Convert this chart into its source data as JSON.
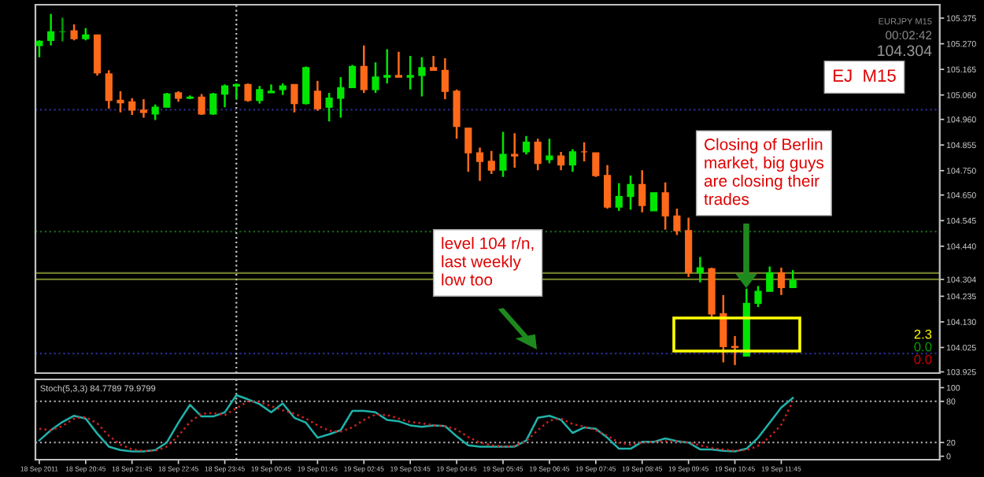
{
  "chart_data": [
    {
      "type": "candlestick",
      "x": [
        "2011-09-18T19:45",
        "2011-09-18T20:00",
        "2011-09-18T20:15",
        "2011-09-18T20:30",
        "2011-09-18T20:45",
        "2011-09-18T21:00",
        "2011-09-18T21:15",
        "2011-09-18T21:30",
        "2011-09-18T21:45",
        "2011-09-18T22:00",
        "2011-09-18T22:15",
        "2011-09-18T22:30",
        "2011-09-18T22:45",
        "2011-09-18T23:00",
        "2011-09-18T23:15",
        "2011-09-18T23:30",
        "2011-09-18T23:45",
        "2011-09-19T00:00",
        "2011-09-19T00:15",
        "2011-09-19T00:30",
        "2011-09-19T00:45",
        "2011-09-19T01:00",
        "2011-09-19T01:15",
        "2011-09-19T01:30",
        "2011-09-19T01:45",
        "2011-09-19T02:00",
        "2011-09-19T02:15",
        "2011-09-19T02:30",
        "2011-09-19T02:45",
        "2011-09-19T03:00",
        "2011-09-19T03:15",
        "2011-09-19T03:30",
        "2011-09-19T03:45",
        "2011-09-19T04:00",
        "2011-09-19T04:15",
        "2011-09-19T04:30",
        "2011-09-19T04:45",
        "2011-09-19T05:00",
        "2011-09-19T05:15",
        "2011-09-19T05:30",
        "2011-09-19T05:45",
        "2011-09-19T06:00",
        "2011-09-19T06:15",
        "2011-09-19T06:30",
        "2011-09-19T06:45",
        "2011-09-19T07:00",
        "2011-09-19T07:15",
        "2011-09-19T07:30",
        "2011-09-19T07:45",
        "2011-09-19T08:00",
        "2011-09-19T08:15",
        "2011-09-19T08:30",
        "2011-09-19T08:45",
        "2011-09-19T09:00",
        "2011-09-19T09:15",
        "2011-09-19T09:30",
        "2011-09-19T09:45",
        "2011-09-19T10:00",
        "2011-09-19T10:15",
        "2011-09-19T10:30",
        "2011-09-19T10:45",
        "2011-09-19T11:00",
        "2011-09-19T11:15",
        "2011-09-19T11:30",
        "2011-09-19T11:45",
        "2011-09-19T12:00"
      ],
      "ohlc": [
        [
          105.263,
          105.284,
          105.215,
          105.28
        ],
        [
          105.284,
          105.392,
          105.263,
          105.319
        ],
        [
          105.319,
          105.377,
          105.28,
          105.319
        ],
        [
          105.323,
          105.349,
          105.284,
          105.291
        ],
        [
          105.291,
          105.334,
          105.284,
          105.306
        ],
        [
          105.306,
          105.306,
          105.14,
          105.151
        ],
        [
          105.146,
          105.161,
          105.004,
          105.038
        ],
        [
          105.038,
          105.075,
          104.989,
          105.028
        ],
        [
          105.032,
          105.047,
          104.978,
          104.998
        ],
        [
          104.998,
          105.043,
          104.967,
          104.989
        ],
        [
          104.982,
          105.021,
          104.957,
          105.01
        ],
        [
          105.01,
          105.069,
          105.01,
          105.064
        ],
        [
          105.069,
          105.075,
          105.032,
          105.047
        ],
        [
          105.047,
          105.058,
          105.043,
          105.051
        ],
        [
          105.051,
          105.064,
          104.978,
          104.982
        ],
        [
          104.982,
          105.069,
          104.978,
          105.064
        ],
        [
          105.064,
          105.103,
          105.01,
          105.097
        ],
        [
          105.097,
          105.107,
          105.043,
          105.103
        ],
        [
          105.103,
          105.107,
          105.032,
          105.038
        ],
        [
          105.038,
          105.097,
          105.025,
          105.082
        ],
        [
          105.069,
          105.103,
          105.069,
          105.075
        ],
        [
          105.082,
          105.107,
          105.06,
          105.097
        ],
        [
          105.103,
          105.103,
          104.989,
          105.025
        ],
        [
          105.025,
          105.177,
          105.021,
          105.172
        ],
        [
          105.075,
          105.118,
          104.995,
          105.004
        ],
        [
          105.01,
          105.069,
          104.952,
          105.047
        ],
        [
          105.047,
          105.133,
          104.967,
          105.09
        ],
        [
          105.09,
          105.183,
          105.09,
          105.177
        ],
        [
          105.177,
          105.263,
          105.069,
          105.082
        ],
        [
          105.082,
          105.194,
          105.069,
          105.133
        ],
        [
          105.133,
          105.248,
          105.107,
          105.14
        ],
        [
          105.14,
          105.237,
          105.133,
          105.133
        ],
        [
          105.133,
          105.22,
          105.082,
          105.14
        ],
        [
          105.14,
          105.215,
          105.054,
          105.172
        ],
        [
          105.172,
          105.22,
          105.161,
          105.161
        ],
        [
          105.161,
          105.211,
          105.043,
          105.075
        ],
        [
          105.075,
          105.082,
          104.881,
          104.931
        ],
        [
          104.924,
          104.924,
          104.745,
          104.823
        ],
        [
          104.823,
          104.844,
          104.708,
          104.788
        ],
        [
          104.788,
          104.831,
          104.736,
          104.752
        ],
        [
          104.752,
          104.909,
          104.724,
          104.816
        ],
        [
          104.816,
          104.903,
          104.762,
          104.81
        ],
        [
          104.827,
          104.892,
          104.816,
          104.866
        ],
        [
          104.866,
          104.881,
          104.752,
          104.78
        ],
        [
          104.795,
          104.881,
          104.78,
          104.81
        ],
        [
          104.81,
          104.827,
          104.752,
          104.773
        ],
        [
          104.773,
          104.838,
          104.745,
          104.827
        ],
        [
          104.827,
          104.866,
          104.788,
          104.827
        ],
        [
          104.823,
          104.823,
          104.724,
          104.73
        ],
        [
          104.73,
          104.773,
          104.594,
          104.601
        ],
        [
          104.601,
          104.698,
          104.585,
          104.644
        ],
        [
          104.644,
          104.73,
          104.59,
          104.693
        ],
        [
          104.693,
          104.752,
          104.579,
          104.607
        ],
        [
          104.585,
          104.659,
          104.585,
          104.659
        ],
        [
          104.659,
          104.702,
          104.508,
          104.564
        ],
        [
          104.564,
          104.594,
          104.486,
          104.504
        ],
        [
          104.504,
          104.557,
          104.314,
          104.331
        ],
        [
          104.331,
          104.396,
          104.292,
          104.352
        ],
        [
          104.348,
          104.352,
          104.148,
          104.163
        ],
        [
          104.163,
          104.24,
          103.964,
          104.029
        ],
        [
          104.029,
          104.072,
          103.953,
          104.025
        ],
        [
          103.99,
          104.266,
          103.99,
          104.206
        ],
        [
          104.206,
          104.277,
          104.191,
          104.255
        ],
        [
          104.255,
          104.357,
          104.255,
          104.331
        ],
        [
          104.331,
          104.352,
          104.24,
          104.271
        ],
        [
          104.271,
          104.342,
          104.271,
          104.299
        ]
      ],
      "colors": [
        "#00e600",
        "#00e600",
        "#00a000",
        "#ff6a1a",
        "#00e600",
        "#ff6a1a",
        "#ff6a1a",
        "#ff6a1a",
        "#ff6a1a",
        "#ff6a1a",
        "#00e600",
        "#00e600",
        "#ff6a1a",
        "#00e600",
        "#ff6a1a",
        "#00e600",
        "#00e600",
        "#00e600",
        "#ff6a1a",
        "#00e600",
        "#00e600",
        "#00e600",
        "#ff6a1a",
        "#00e600",
        "#ff6a1a",
        "#00e600",
        "#00e600",
        "#00e600",
        "#ff6a1a",
        "#00e600",
        "#00e600",
        "#ff6a1a",
        "#00e600",
        "#00e600",
        "#ff6a1a",
        "#ff6a1a",
        "#ff6a1a",
        "#ff6a1a",
        "#ff6a1a",
        "#ff6a1a",
        "#00e600",
        "#ff6a1a",
        "#00e600",
        "#ff6a1a",
        "#00e600",
        "#ff6a1a",
        "#00e600",
        "#ff6a1a",
        "#ff6a1a",
        "#ff6a1a",
        "#00e600",
        "#00e600",
        "#ff6a1a",
        "#00e600",
        "#ff6a1a",
        "#ff6a1a",
        "#ff6a1a",
        "#00e600",
        "#ff6a1a",
        "#ff6a1a",
        "#ff6a1a",
        "#00e600",
        "#00e600",
        "#00e600",
        "#ff6a1a",
        "#00e600"
      ],
      "xlim": [
        "2011-09-18T19:40",
        "2011-09-19T15:10"
      ],
      "ylim": [
        103.92,
        105.43
      ],
      "yticks": [
        105.375,
        {
          "value": 105.27,
          "label": "105.270"
        },
        105.165,
        {
          "value": 105.06,
          "label": "105.060"
        },
        {
          "value": 104.96,
          "label": "104.960"
        },
        104.855,
        {
          "value": 104.75,
          "label": "104.750"
        },
        {
          "value": 104.65,
          "label": "104.650"
        },
        104.545,
        {
          "value": 104.44,
          "label": "104.440"
        },
        104.304,
        104.235,
        {
          "value": 104.13,
          "label": "104.130"
        },
        104.025,
        103.925
      ],
      "tick_labels": "y",
      "ref_lines": [
        {
          "axis": "y",
          "value": 105.0,
          "color": "#2a2a8a",
          "line_style": "dotted"
        },
        {
          "axis": "y",
          "value": 104.5,
          "color": "#1e6a1e",
          "line_style": "dotted"
        },
        {
          "axis": "y",
          "value": 104.0,
          "color": "#2a2a8a",
          "line_style": "dotted"
        },
        {
          "axis": "y",
          "value": 104.33,
          "color": "#6b7a2a",
          "line_style": "solid"
        },
        {
          "axis": "y",
          "value": 104.304,
          "color": "#6b7a2a",
          "line_style": "solid"
        },
        {
          "axis": "x",
          "value": "2011-09-19T00:00",
          "color": "#c8c8c8",
          "line_style": "dotted"
        }
      ],
      "annotations": [
        "EJ  M15",
        "level 104 r/n,\nlast weekly\nlow too",
        "Closing of Berlin\nmarket, big guys\nare closing their\ntrades",
        "EURJPY M15",
        "00:02:42",
        "104.304",
        "2.3",
        "0.0",
        "0.0"
      ]
    },
    {
      "type": "line",
      "title": "Stoch(5,3,3) 84.7789 79.9799",
      "x": [
        "2011-09-18T19:45",
        "2011-09-18T20:00",
        "2011-09-18T20:15",
        "2011-09-18T20:30",
        "2011-09-18T20:45",
        "2011-09-18T21:00",
        "2011-09-18T21:15",
        "2011-09-18T21:30",
        "2011-09-18T21:45",
        "2011-09-18T22:00",
        "2011-09-18T22:15",
        "2011-09-18T22:30",
        "2011-09-18T22:45",
        "2011-09-18T23:00",
        "2011-09-18T23:15",
        "2011-09-18T23:30",
        "2011-09-18T23:45",
        "2011-09-19T00:00",
        "2011-09-19T00:15",
        "2011-09-19T00:30",
        "2011-09-19T00:45",
        "2011-09-19T01:00",
        "2011-09-19T01:15",
        "2011-09-19T01:30",
        "2011-09-19T01:45",
        "2011-09-19T02:00",
        "2011-09-19T02:15",
        "2011-09-19T02:30",
        "2011-09-19T02:45",
        "2011-09-19T03:00",
        "2011-09-19T03:15",
        "2011-09-19T03:30",
        "2011-09-19T03:45",
        "2011-09-19T04:00",
        "2011-09-19T04:15",
        "2011-09-19T04:30",
        "2011-09-19T04:45",
        "2011-09-19T05:00",
        "2011-09-19T05:15",
        "2011-09-19T05:30",
        "2011-09-19T05:45",
        "2011-09-19T06:00",
        "2011-09-19T06:15",
        "2011-09-19T06:30",
        "2011-09-19T06:45",
        "2011-09-19T07:00",
        "2011-09-19T07:15",
        "2011-09-19T07:30",
        "2011-09-19T07:45",
        "2011-09-19T08:00",
        "2011-09-19T08:15",
        "2011-09-19T08:30",
        "2011-09-19T08:45",
        "2011-09-19T09:00",
        "2011-09-19T09:15",
        "2011-09-19T09:30",
        "2011-09-19T09:45",
        "2011-09-19T10:00",
        "2011-09-19T10:15",
        "2011-09-19T10:30",
        "2011-09-19T10:45",
        "2011-09-19T11:00",
        "2011-09-19T11:15",
        "2011-09-19T11:30",
        "2011-09-19T11:45",
        "2011-09-19T12:00"
      ],
      "series": [
        {
          "color": "#20b2aa",
          "line_style": "solid",
          "values": [
            23,
            38,
            50,
            59,
            55,
            33,
            14,
            9,
            7,
            7,
            9,
            20,
            49,
            75,
            58,
            58,
            64,
            89,
            83,
            76,
            64,
            77,
            56,
            49,
            27,
            32,
            38,
            66,
            66,
            64,
            53,
            51,
            45,
            43,
            45,
            44,
            29,
            16,
            14,
            14,
            14,
            14,
            23,
            56,
            59,
            53,
            34,
            42,
            40,
            27,
            11,
            11,
            21,
            21,
            26,
            22,
            20,
            10,
            10,
            8,
            7,
            11,
            27,
            49,
            71,
            85
          ]
        },
        {
          "color": "#d02020",
          "line_style": "dotted",
          "values": [
            40,
            38,
            44,
            55,
            57,
            48,
            30,
            17,
            10,
            8,
            8,
            14,
            30,
            50,
            62,
            63,
            60,
            70,
            80,
            79,
            73,
            67,
            62,
            55,
            45,
            37,
            36,
            42,
            53,
            61,
            60,
            55,
            50,
            48,
            45,
            44,
            39,
            28,
            20,
            16,
            14,
            15,
            22,
            38,
            52,
            55,
            47,
            43,
            38,
            30,
            20,
            17,
            20,
            21,
            22,
            22,
            20,
            16,
            12,
            10,
            8,
            9,
            15,
            28,
            46,
            80
          ]
        }
      ],
      "xlim": [
        "2011-09-18T19:40",
        "2011-09-19T15:10"
      ],
      "xticks": [
        {
          "value": "2011-09-18T19:45",
          "label": "18 Sep 2011"
        },
        {
          "value": "2011-09-18T20:45",
          "label": "18 Sep 20:45"
        },
        {
          "value": "2011-09-18T21:45",
          "label": "18 Sep 21:45"
        },
        {
          "value": "2011-09-18T22:45",
          "label": "18 Sep 22:45"
        },
        {
          "value": "2011-09-18T23:45",
          "label": "18 Sep 23:45"
        },
        {
          "value": "2011-09-19T00:45",
          "label": "19 Sep 00:45"
        },
        {
          "value": "2011-09-19T01:45",
          "label": "19 Sep 01:45"
        },
        {
          "value": "2011-09-19T02:45",
          "label": "19 Sep 02:45"
        },
        {
          "value": "2011-09-19T03:45",
          "label": "19 Sep 03:45"
        },
        {
          "value": "2011-09-19T04:45",
          "label": "19 Sep 04:45"
        },
        {
          "value": "2011-09-19T05:45",
          "label": "19 Sep 05:45"
        },
        {
          "value": "2011-09-19T06:45",
          "label": "19 Sep 06:45"
        },
        {
          "value": "2011-09-19T07:45",
          "label": "19 Sep 07:45"
        },
        {
          "value": "2011-09-19T08:45",
          "label": "19 Sep 08:45"
        },
        {
          "value": "2011-09-19T09:45",
          "label": "19 Sep 09:45"
        },
        {
          "value": "2011-09-19T10:45",
          "label": "19 Sep 10:45"
        },
        {
          "value": "2011-09-19T11:45",
          "label": "19 Sep 11:45"
        }
      ],
      "ylim": [
        -5,
        112
      ],
      "yticks": [
        0,
        20,
        80,
        100
      ],
      "ref_lines": [
        {
          "axis": "y",
          "value": 20,
          "color": "#a0a0a0",
          "line_style": "dotted"
        },
        {
          "axis": "y",
          "value": 80,
          "color": "#a0a0a0",
          "line_style": "dotted"
        },
        {
          "axis": "x",
          "value": "2011-09-19T00:00",
          "color": "#c8c8c8",
          "line_style": "dotted"
        }
      ]
    }
  ]
}
